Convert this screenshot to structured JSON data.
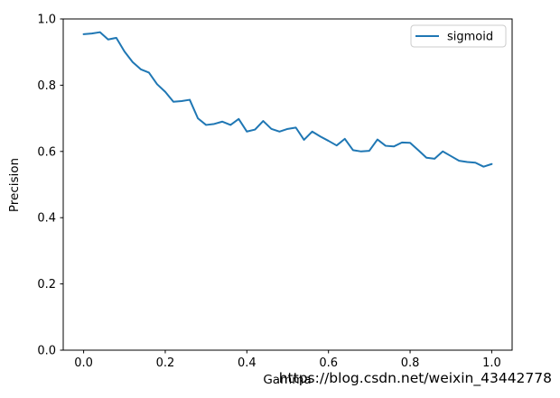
{
  "figure": {
    "background": "#ffffff"
  },
  "chart_data": {
    "type": "line",
    "title": "",
    "xlabel": "Gamma",
    "ylabel": "Precision",
    "xlim": [
      -0.05,
      1.05
    ],
    "ylim": [
      0.0,
      1.0
    ],
    "xticks": [
      0.0,
      0.2,
      0.4,
      0.6,
      0.8,
      1.0
    ],
    "xtick_labels": [
      "0.0",
      "0.2",
      "0.4",
      "0.6",
      "0.8",
      "1.0"
    ],
    "yticks": [
      0.0,
      0.2,
      0.4,
      0.6,
      0.8,
      1.0
    ],
    "ytick_labels": [
      "0.0",
      "0.2",
      "0.4",
      "0.6",
      "0.8",
      "1.0"
    ],
    "grid": false,
    "axis_color": "#000000",
    "legend": {
      "position": "upper right",
      "entries": [
        "sigmoid"
      ],
      "border_color": "#cccccc",
      "background": "#ffffff"
    },
    "series": [
      {
        "name": "sigmoid",
        "color": "#1f77b4",
        "x": [
          0.0,
          0.02,
          0.04,
          0.06,
          0.08,
          0.1,
          0.12,
          0.14,
          0.16,
          0.18,
          0.2,
          0.22,
          0.24,
          0.26,
          0.28,
          0.3,
          0.32,
          0.34,
          0.36,
          0.38,
          0.4,
          0.42,
          0.44,
          0.46,
          0.48,
          0.5,
          0.52,
          0.54,
          0.56,
          0.58,
          0.6,
          0.62,
          0.64,
          0.66,
          0.68,
          0.7,
          0.72,
          0.74,
          0.76,
          0.78,
          0.8,
          0.82,
          0.84,
          0.86,
          0.88,
          0.9,
          0.92,
          0.94,
          0.96,
          0.98,
          1.0
        ],
        "y": [
          0.954,
          0.956,
          0.96,
          0.938,
          0.943,
          0.902,
          0.87,
          0.848,
          0.838,
          0.803,
          0.78,
          0.75,
          0.752,
          0.756,
          0.7,
          0.68,
          0.683,
          0.69,
          0.68,
          0.698,
          0.66,
          0.666,
          0.692,
          0.668,
          0.66,
          0.668,
          0.672,
          0.635,
          0.66,
          0.645,
          0.632,
          0.618,
          0.638,
          0.604,
          0.6,
          0.602,
          0.636,
          0.617,
          0.615,
          0.627,
          0.626,
          0.604,
          0.581,
          0.578,
          0.6,
          0.586,
          0.572,
          0.568,
          0.566,
          0.554,
          0.562
        ]
      }
    ]
  },
  "watermark": {
    "text": "https://blog.csdn.net/weixin_43442778",
    "color": "#e2e2e2"
  }
}
